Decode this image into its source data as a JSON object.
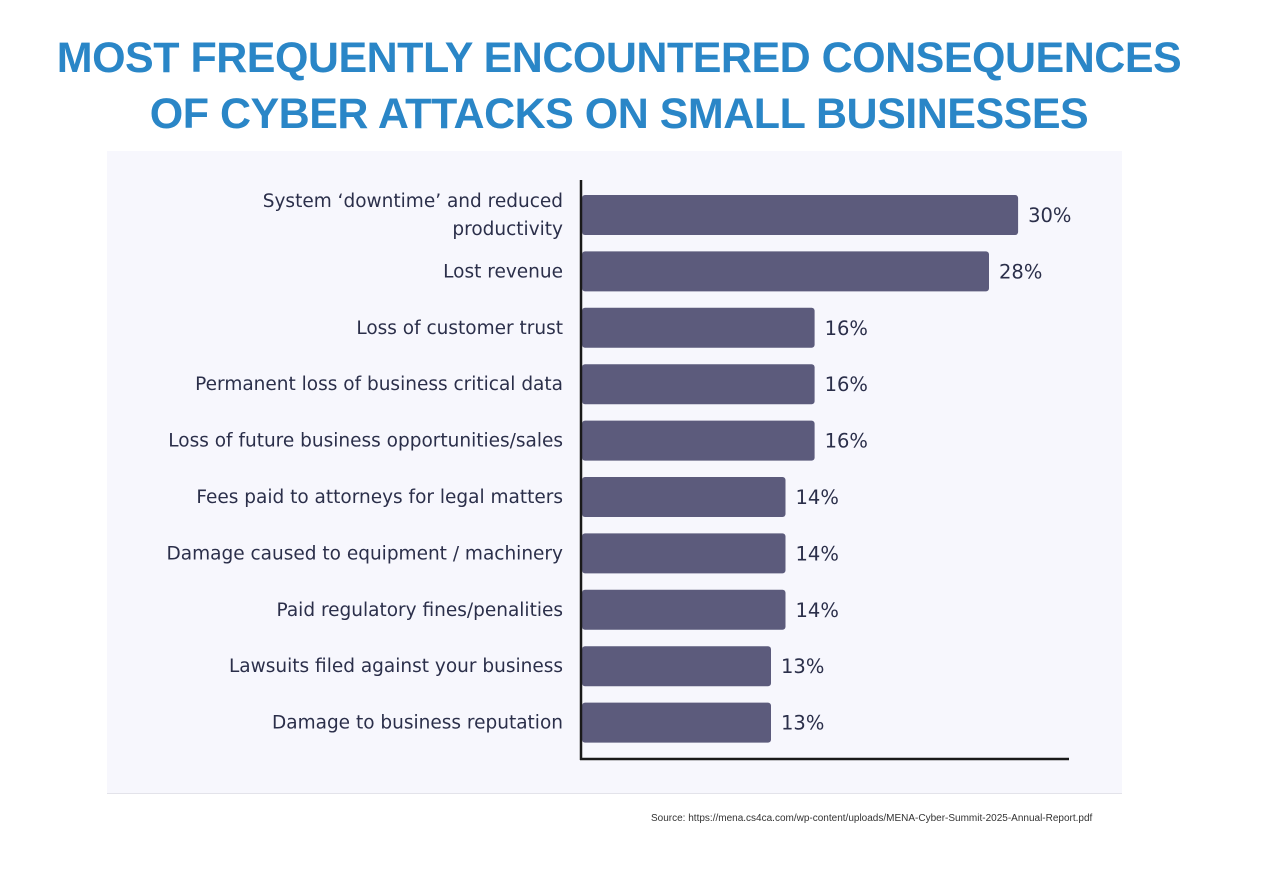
{
  "title_lines": [
    "MOST FREQUENTLY ENCOUNTERED CONSEQUENCES",
    "OF CYBER ATTACKS ON SMALL BUSINESSES"
  ],
  "source": "Source: https://mena.cs4ca.com/wp-content/uploads/MENA-Cyber-Summit-2025-Annual-Report.pdf",
  "colors": {
    "title": "#2a86c7",
    "bar": "#5c5b7c",
    "panel": "#f7f7fd",
    "axis": "#1a1a1a"
  },
  "chart_data": {
    "type": "bar",
    "orientation": "horizontal",
    "title": "MOST FREQUENTLY ENCOUNTERED CONSEQUENCES OF CYBER ATTACKS ON SMALL BUSINESSES",
    "categories": [
      [
        "System ‘downtime’ and reduced",
        "productivity"
      ],
      [
        "Lost revenue"
      ],
      [
        "Loss of customer trust"
      ],
      [
        "Permanent loss of business critical data"
      ],
      [
        "Loss of future business opportunities/sales"
      ],
      [
        "Fees paid to attorneys for legal matters"
      ],
      [
        "Damage caused to equipment / machinery"
      ],
      [
        "Paid regulatory fines/penalities"
      ],
      [
        "Lawsuits filed against your business"
      ],
      [
        "Damage to business reputation"
      ]
    ],
    "values": [
      30,
      28,
      16,
      16,
      16,
      14,
      14,
      14,
      13,
      13
    ],
    "value_labels": [
      "30%",
      "28%",
      "16%",
      "16%",
      "16%",
      "14%",
      "14%",
      "14%",
      "13%",
      "13%"
    ],
    "unit": "%",
    "xlim": [
      0,
      33.5
    ],
    "grid": false
  }
}
